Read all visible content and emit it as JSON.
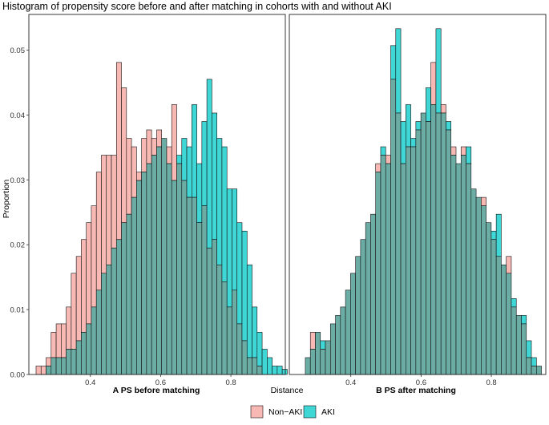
{
  "title": "Histogram of propensity score before and after matching in cohorts with and without AKI",
  "ylabel": "Proportion",
  "xlabel": "Distance",
  "colors": {
    "non_aki": "#F8B9B4",
    "aki": "#3FD6D6",
    "overlap": "#6BADA5",
    "outline": "#111111"
  },
  "legend": {
    "non_aki_label": "Non−AKI",
    "aki_label": "AKI"
  },
  "chart_data": [
    {
      "type": "bar",
      "panel_label": "A  PS before matching",
      "xlim": [
        0.225,
        0.955
      ],
      "ylim": [
        0,
        0.0555
      ],
      "xticks": [
        0.4,
        0.6,
        0.8
      ],
      "xtick_labels": [
        "0.4",
        "0.6",
        "0.8"
      ],
      "yticks": [
        0,
        0.01,
        0.02,
        0.03,
        0.04,
        0.05
      ],
      "ytick_labels": [
        "0.00",
        "0.01",
        "0.02",
        "0.03",
        "0.04",
        "0.05"
      ],
      "bin_start": 0.2455,
      "bin_width": 0.0143,
      "non_aki": [
        0.0013,
        0.0013,
        0.0026,
        0.0065,
        0.0078,
        0.0078,
        0.0104,
        0.0156,
        0.0182,
        0.0208,
        0.0234,
        0.026,
        0.0312,
        0.0338,
        0.0338,
        0.0338,
        0.0481,
        0.0442,
        0.0364,
        0.0351,
        0.0312,
        0.0364,
        0.0377,
        0.0364,
        0.0377,
        0.0364,
        0.0351,
        0.0416,
        0.0325,
        0.0299,
        0.0273,
        0.0273,
        0.0234,
        0.026,
        0.0195,
        0.0208,
        0.0169,
        0.0143,
        0.0104,
        0.013,
        0.0078,
        0.0052,
        0.0026,
        0.0026,
        0.0013,
        0,
        0,
        0,
        0,
        0
      ],
      "aki": [
        0,
        0,
        0.0013,
        0.0026,
        0.0026,
        0.0026,
        0.0039,
        0.0039,
        0.0052,
        0.0065,
        0.0078,
        0.0104,
        0.013,
        0.0156,
        0.0169,
        0.0195,
        0.0208,
        0.0234,
        0.0247,
        0.0273,
        0.0299,
        0.0312,
        0.0325,
        0.0338,
        0.0351,
        0.0364,
        0.0325,
        0.0299,
        0.0338,
        0.0364,
        0.0351,
        0.0416,
        0.0325,
        0.039,
        0.0455,
        0.0403,
        0.0364,
        0.0351,
        0.0286,
        0.0286,
        0.0234,
        0.0221,
        0.0169,
        0.0104,
        0.0065,
        0.0039,
        0.0026,
        0.0013,
        0.0013,
        0.0008
      ]
    },
    {
      "type": "bar",
      "panel_label": "B  PS after matching",
      "xlim": [
        0.225,
        0.955
      ],
      "ylim": [
        0,
        0.0555
      ],
      "xticks": [
        0.4,
        0.6,
        0.8
      ],
      "xtick_labels": [
        "0.4",
        "0.6",
        "0.8"
      ],
      "yticks": [
        0,
        0.01,
        0.02,
        0.03,
        0.04,
        0.05
      ],
      "bin_start": 0.2705,
      "bin_width": 0.0143,
      "non_aki": [
        0.0026,
        0.0065,
        0.0065,
        0.0039,
        0.0052,
        0.0078,
        0.0091,
        0.0104,
        0.013,
        0.0156,
        0.0182,
        0.0208,
        0.0234,
        0.0247,
        0.0325,
        0.0338,
        0.0338,
        0.0455,
        0.0403,
        0.0325,
        0.0351,
        0.0351,
        0.0377,
        0.0403,
        0.039,
        0.0481,
        0.0403,
        0.0416,
        0.0377,
        0.0351,
        0.0325,
        0.0351,
        0.0325,
        0.0286,
        0.0273,
        0.0273,
        0.0234,
        0.0208,
        0.0182,
        0.0169,
        0.0182,
        0.0104,
        0.0091,
        0.0078,
        0.0026,
        0.0013,
        0.0013
      ],
      "aki": [
        0.0026,
        0.0039,
        0.0065,
        0.0052,
        0.0052,
        0.0078,
        0.0091,
        0.0104,
        0.013,
        0.0156,
        0.0182,
        0.0208,
        0.0234,
        0.0247,
        0.0312,
        0.0351,
        0.0325,
        0.0507,
        0.0533,
        0.039,
        0.0416,
        0.0364,
        0.039,
        0.0403,
        0.0442,
        0.0416,
        0.0533,
        0.0403,
        0.039,
        0.0338,
        0.0325,
        0.0338,
        0.0351,
        0.0286,
        0.0273,
        0.026,
        0.0234,
        0.0221,
        0.0247,
        0.0169,
        0.0156,
        0.0117,
        0.0091,
        0.0091,
        0.0052,
        0.0026,
        0.0013
      ]
    }
  ]
}
